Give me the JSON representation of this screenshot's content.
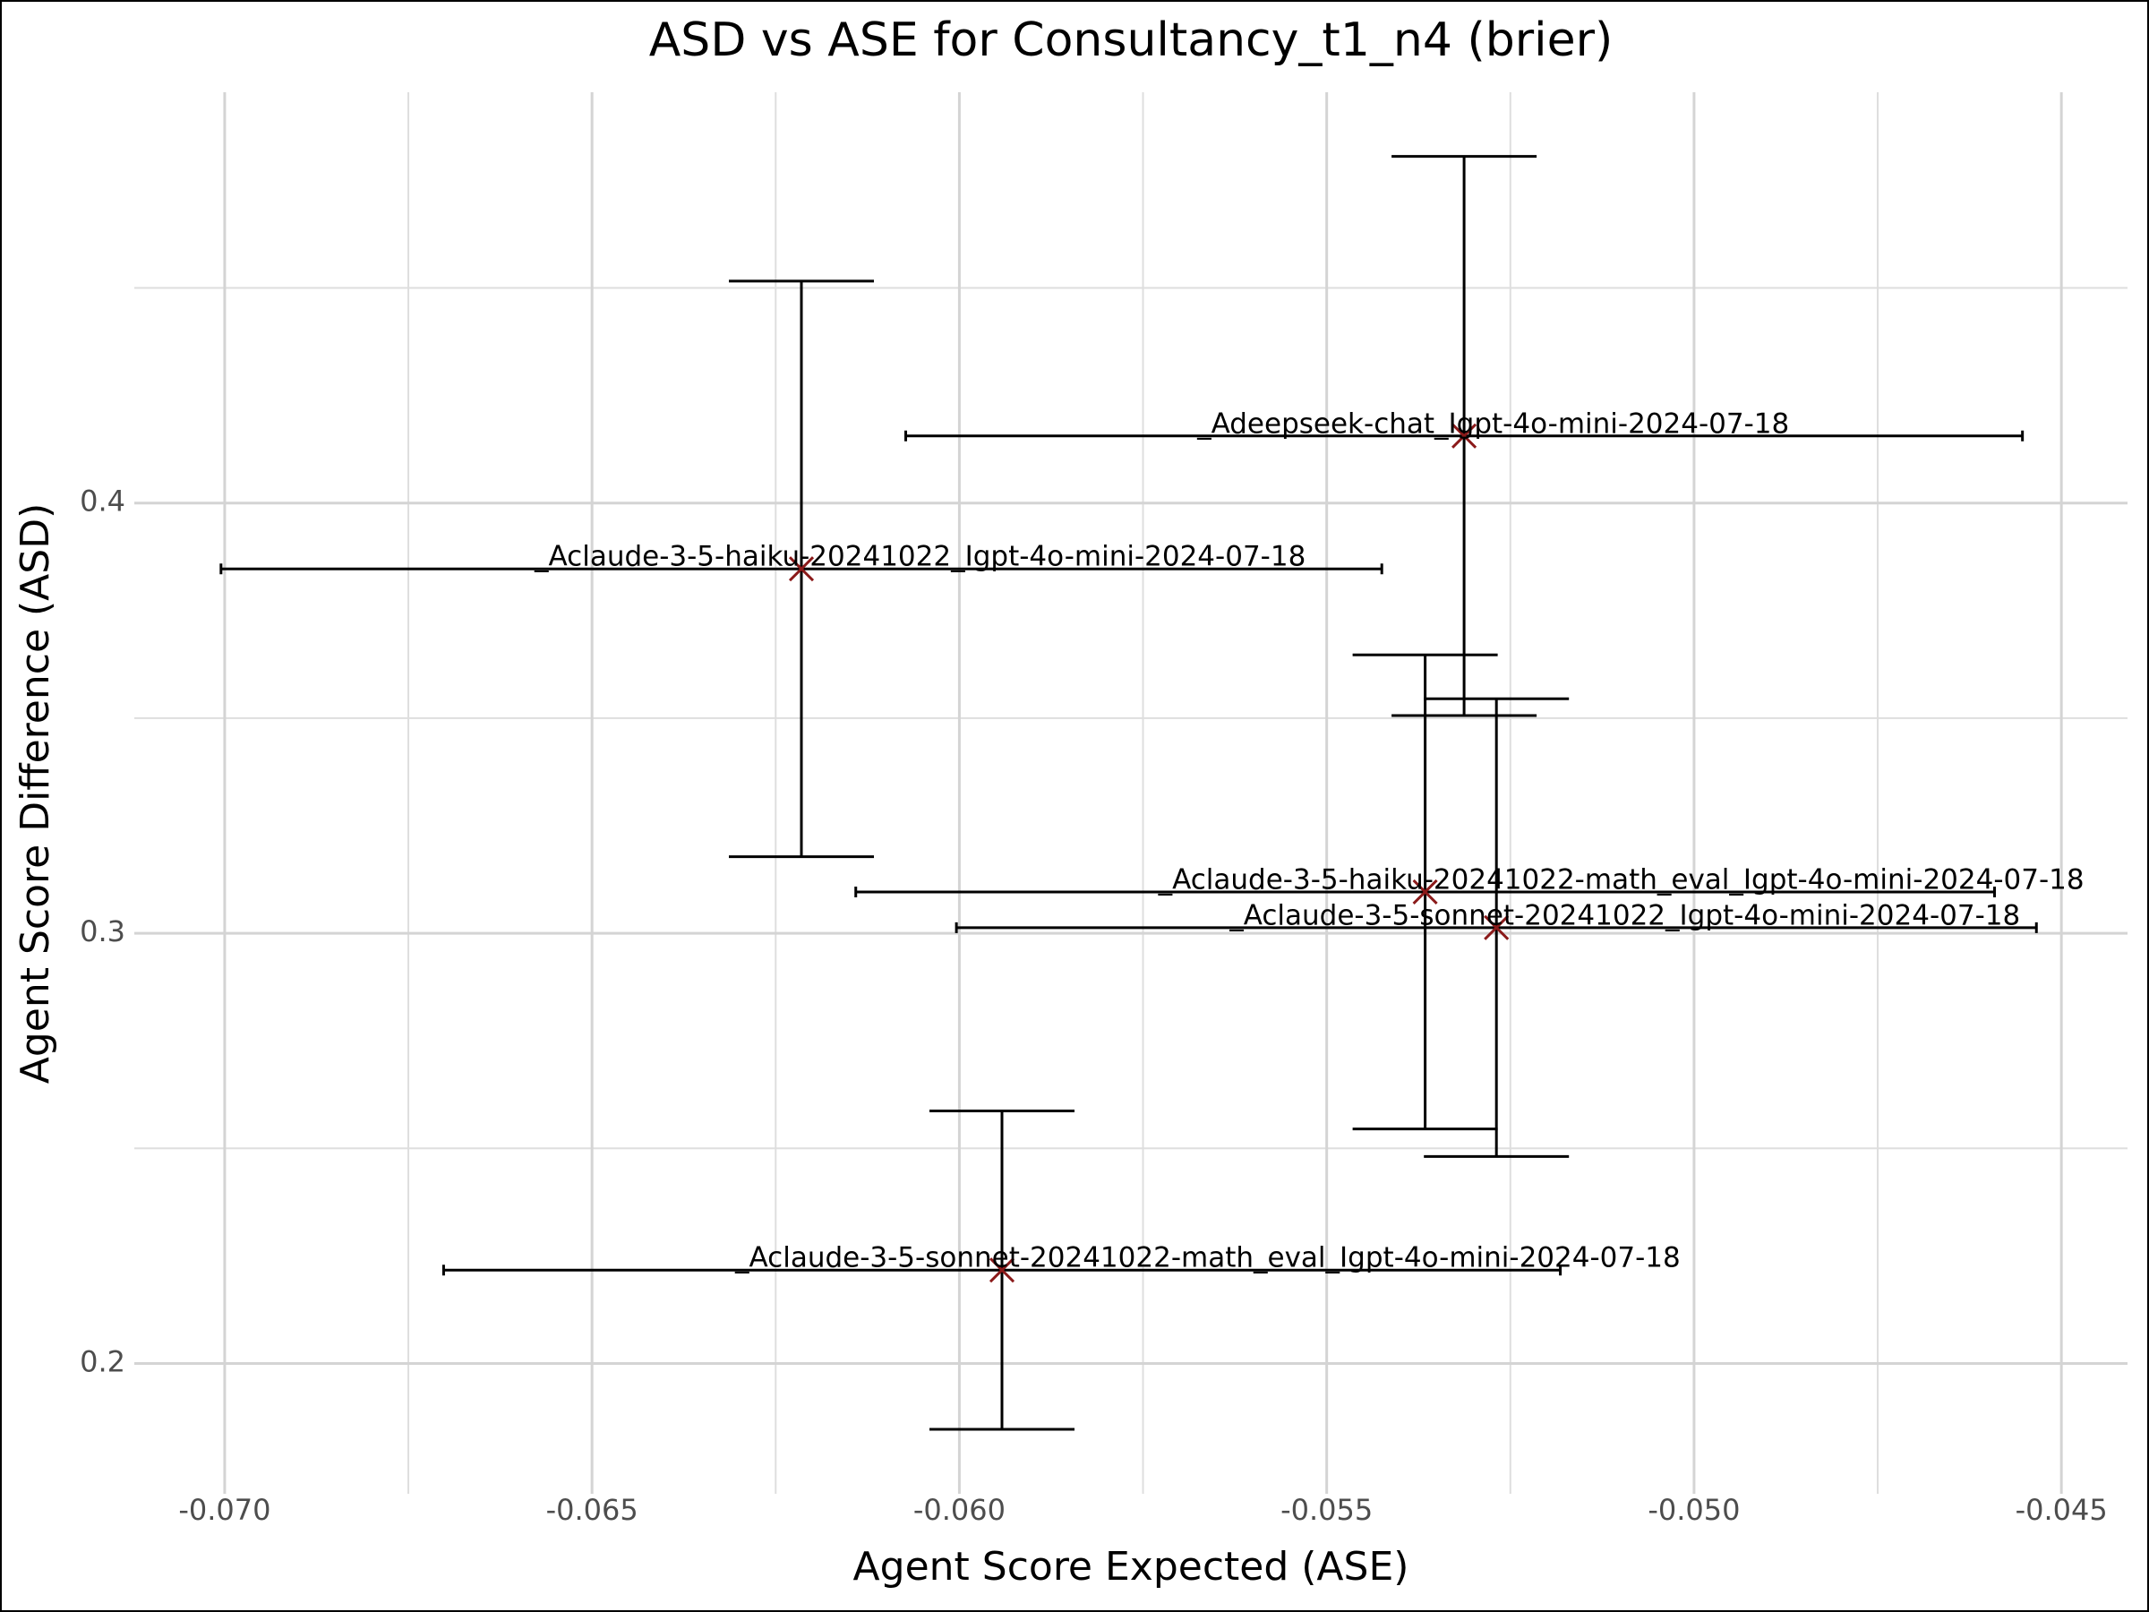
{
  "chart_data": {
    "type": "errorbar-scatter",
    "title": "ASD vs ASE for Consultancy_t1_n4 (brier)",
    "x_label": "Agent Score Expected (ASE)",
    "y_label": "Agent Score Difference (ASD)",
    "xlim": [
      -0.07123,
      -0.0441
    ],
    "ylim": [
      0.1697,
      0.4955
    ],
    "xticks": [
      {
        "value": -0.07,
        "label": "-0.070"
      },
      {
        "value": -0.065,
        "label": "-0.065"
      },
      {
        "value": -0.06,
        "label": "-0.060"
      },
      {
        "value": -0.055,
        "label": "-0.055"
      },
      {
        "value": -0.05,
        "label": "-0.050"
      },
      {
        "value": -0.045,
        "label": "-0.045"
      }
    ],
    "yticks": [
      0.2,
      0.3,
      0.4
    ],
    "grid": true,
    "marker_color": "#8b1a1a",
    "errorbar_color": "#000000",
    "points": [
      {
        "label": "_Adeepseek-chat_Igpt-4o-mini-2024-07-18",
        "x": -0.05313,
        "y": 0.4156,
        "xerr": 0.0076,
        "yerr": 0.065
      },
      {
        "label": "_Aclaude-3-5-haiku-20241022_Igpt-4o-mini-2024-07-18",
        "x": -0.06215,
        "y": 0.3847,
        "xerr": 0.0079,
        "yerr": 0.0669
      },
      {
        "label": "_Aclaude-3-5-haiku-20241022-math_eval_Igpt-4o-mini-2024-07-18",
        "x": -0.05366,
        "y": 0.3096,
        "xerr": 0.00775,
        "yerr": 0.0551
      },
      {
        "label": "_Aclaude-3-5-sonnet-20241022_Igpt-4o-mini-2024-07-18",
        "x": -0.05269,
        "y": 0.3013,
        "xerr": 0.00735,
        "yerr": 0.0532
      },
      {
        "label": "_Aclaude-3-5-sonnet-20241022-math_eval_Igpt-4o-mini-2024-07-18",
        "x": -0.05942,
        "y": 0.2217,
        "xerr": 0.0076,
        "yerr": 0.037
      }
    ]
  }
}
